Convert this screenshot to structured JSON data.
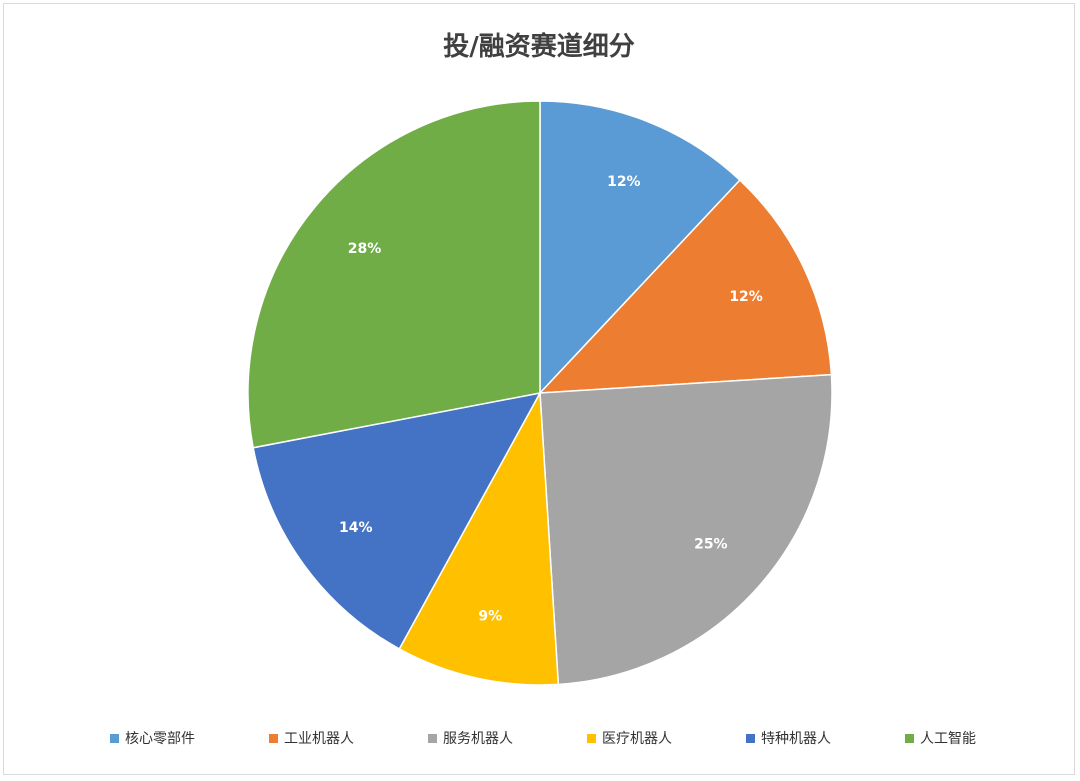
{
  "chart_data": {
    "type": "pie",
    "title": "投/融资赛道细分",
    "categories": [
      "核心零部件",
      "工业机器人",
      "服务机器人",
      "医疗机器人",
      "特种机器人",
      "人工智能"
    ],
    "values": [
      12,
      12,
      25,
      9,
      14,
      28
    ],
    "value_labels": [
      "12%",
      "12%",
      "25%",
      "9%",
      "14%",
      "28%"
    ],
    "colors": [
      "#5b9bd5",
      "#ed7d31",
      "#a5a5a5",
      "#ffc000",
      "#4472c4",
      "#70ad47"
    ],
    "start_angle": "12 o'clock",
    "direction": "clockwise",
    "legend": "bottom"
  }
}
